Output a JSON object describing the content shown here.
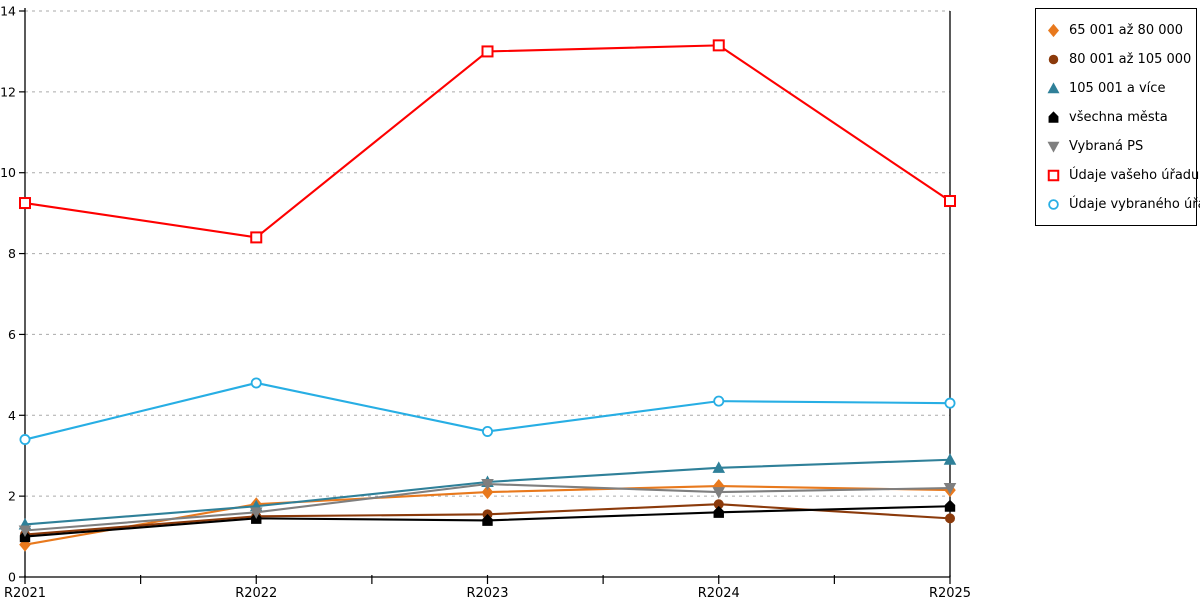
{
  "chart_data": {
    "type": "line",
    "title": "",
    "xlabel": "",
    "ylabel": "",
    "categories": [
      "R2021",
      "R2022",
      "R2023",
      "R2024",
      "R2025"
    ],
    "ylim": [
      0,
      14
    ],
    "yticks": [
      0,
      2,
      4,
      6,
      8,
      10,
      12,
      14
    ],
    "grid": "horizontal-dashed",
    "grid_color": "#AAAAAA",
    "axis_color": "#000000",
    "legend_position": "top-right",
    "series": [
      {
        "name": "65 001 až 80 000",
        "color": "#E8791D",
        "marker": "diamond",
        "marker_filled": true,
        "values": [
          0.8,
          1.8,
          2.1,
          2.25,
          2.15
        ]
      },
      {
        "name": "80 001 až 105 000",
        "color": "#8B3A0B",
        "marker": "circle",
        "marker_filled": true,
        "values": [
          1.05,
          1.5,
          1.55,
          1.8,
          1.45
        ]
      },
      {
        "name": "105 001 a více",
        "color": "#2F8099",
        "marker": "triangle-up",
        "marker_filled": true,
        "values": [
          1.3,
          1.75,
          2.35,
          2.7,
          2.9
        ]
      },
      {
        "name": "všechna města",
        "color": "#000000",
        "marker": "house",
        "marker_filled": true,
        "values": [
          1.0,
          1.45,
          1.4,
          1.6,
          1.75
        ]
      },
      {
        "name": "Vybraná PS",
        "color": "#7F7F7F",
        "marker": "triangle-down",
        "marker_filled": true,
        "values": [
          1.15,
          1.6,
          2.3,
          2.1,
          2.2
        ]
      },
      {
        "name": "Údaje vašeho úřadu",
        "color": "#FE0000",
        "marker": "square",
        "marker_filled": false,
        "values": [
          9.25,
          8.4,
          13.0,
          13.15,
          9.3
        ]
      },
      {
        "name": "Údaje vybraného úřadu",
        "color": "#27AEE4",
        "marker": "circle",
        "marker_filled": false,
        "values": [
          3.4,
          4.8,
          3.6,
          4.35,
          4.3
        ]
      }
    ]
  }
}
